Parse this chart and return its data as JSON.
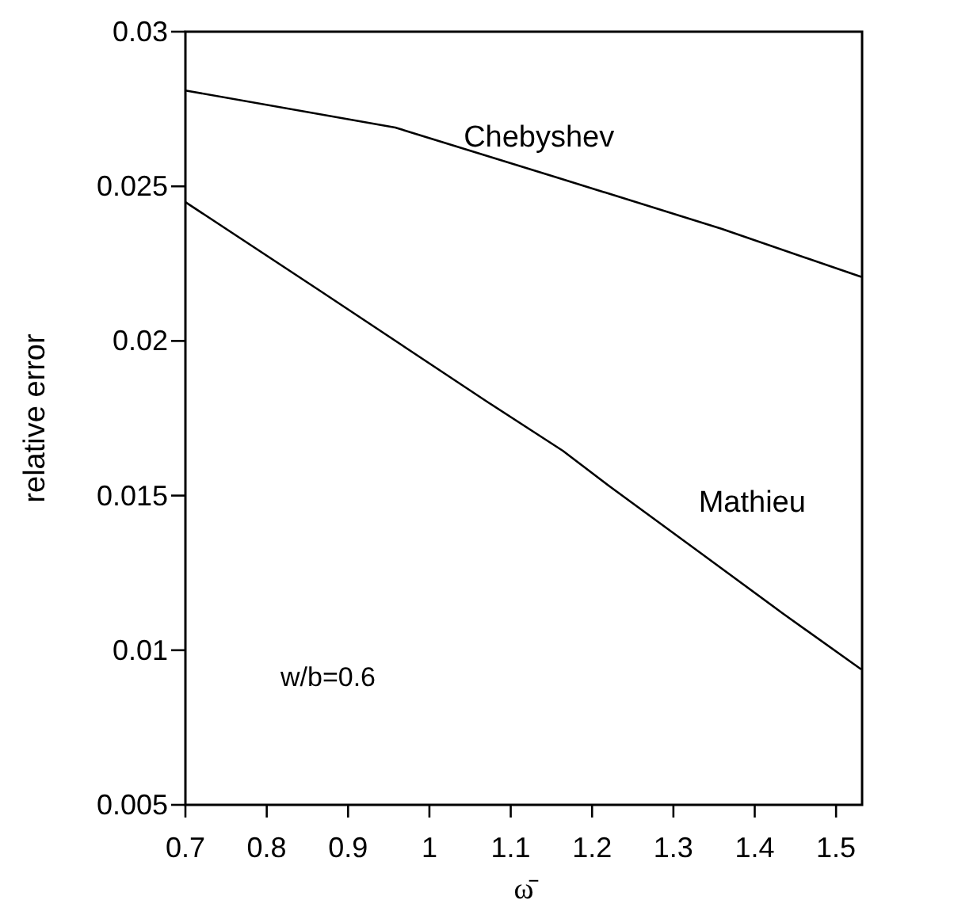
{
  "chart_data": {
    "type": "line",
    "xlabel": "ω̄",
    "ylabel": "relative error",
    "xlim": [
      0.7,
      1.532
    ],
    "ylim": [
      0.005,
      0.03
    ],
    "xticks": [
      0.7,
      0.8,
      0.9,
      1,
      1.1,
      1.2,
      1.3,
      1.4,
      1.5
    ],
    "yticks": [
      0.005,
      0.01,
      0.015,
      0.02,
      0.025,
      0.03
    ],
    "grid": false,
    "legend": false,
    "marker": "none",
    "line_style": "solid",
    "series": [
      {
        "name": "Chebyshev",
        "color": "#000000",
        "x": [
          0.7,
          0.958,
          1.159,
          1.359,
          1.531
        ],
        "values": [
          0.0281,
          0.0269,
          0.02527,
          0.02363,
          0.02207
        ]
      },
      {
        "name": "Mathieu",
        "color": "#000000",
        "x": [
          0.7,
          0.861,
          1.073,
          1.164,
          1.222,
          1.331,
          1.434,
          1.531
        ],
        "values": [
          0.02449,
          0.0217,
          0.018,
          0.01645,
          0.01529,
          0.01319,
          0.0112,
          0.00938
        ]
      }
    ],
    "annotations": [
      "w/b=0.6"
    ]
  }
}
